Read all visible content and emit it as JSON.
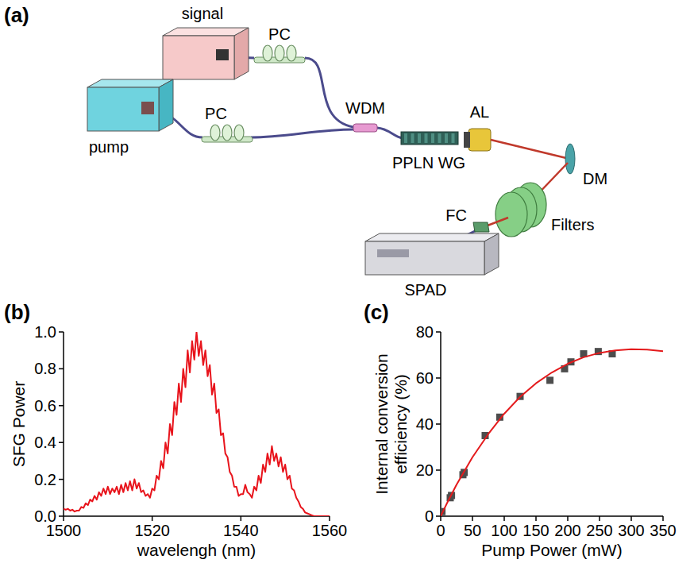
{
  "diagram": {
    "panel": "(a)",
    "components": [
      {
        "label": "signal"
      },
      {
        "label": "PC"
      },
      {
        "label": "pump"
      },
      {
        "label": "PC"
      },
      {
        "label": "WDM"
      },
      {
        "label": "PPLN WG"
      },
      {
        "label": "AL"
      },
      {
        "label": "DM"
      },
      {
        "label": "Filters"
      },
      {
        "label": "FC"
      },
      {
        "label": "SPAD"
      }
    ]
  },
  "chart_data": [
    {
      "type": "line",
      "title": "(b)",
      "x_label": "wavelengh (nm)",
      "y_label": "SFG Power",
      "color": "#e8141c",
      "xlim": [
        1500,
        1560
      ],
      "xticks": [
        1500,
        1520,
        1540,
        1560
      ],
      "ylim": [
        0,
        1
      ],
      "yticks": [
        {
          "value": 0,
          "label": "0.0"
        },
        0.2,
        0.4,
        0.6,
        0.8,
        {
          "value": 1,
          "label": "1.0"
        }
      ],
      "x": [
        1500,
        1500.5,
        1501,
        1501.5,
        1502,
        1502.5,
        1503,
        1503.5,
        1504,
        1504.5,
        1505,
        1505.5,
        1506,
        1506.5,
        1507,
        1507.5,
        1508,
        1508.5,
        1509,
        1509.5,
        1510,
        1510.5,
        1511,
        1511.5,
        1512,
        1512.5,
        1513,
        1513.5,
        1514,
        1514.5,
        1515,
        1515.5,
        1516,
        1516.5,
        1517,
        1517.5,
        1518,
        1518.5,
        1519,
        1519.5,
        1520,
        1520.5,
        1521,
        1521.5,
        1522,
        1522.5,
        1523,
        1523.5,
        1524,
        1524.5,
        1525,
        1525.5,
        1526,
        1526.5,
        1527,
        1527.5,
        1528,
        1528.5,
        1529,
        1529.5,
        1530,
        1530.5,
        1531,
        1531.5,
        1532,
        1532.5,
        1533,
        1533.5,
        1534,
        1534.5,
        1535,
        1535.5,
        1536,
        1536.5,
        1537,
        1537.5,
        1538,
        1538.5,
        1539,
        1539.5,
        1540,
        1540.5,
        1541,
        1541.5,
        1542,
        1542.5,
        1543,
        1543.5,
        1544,
        1544.5,
        1545,
        1545.5,
        1546,
        1546.5,
        1547,
        1547.5,
        1548,
        1548.5,
        1549,
        1549.5,
        1550,
        1550.5,
        1551,
        1551.5,
        1552,
        1552.5,
        1553,
        1553.5,
        1554,
        1554.5,
        1555,
        1555.5,
        1556,
        1556.5,
        1557,
        1557.5,
        1558,
        1558.5,
        1559,
        1559.5,
        1560
      ],
      "values": [
        0.04,
        0.035,
        0.04,
        0.03,
        0.035,
        0.025,
        0.03,
        0.03,
        0.05,
        0.045,
        0.07,
        0.06,
        0.09,
        0.08,
        0.11,
        0.09,
        0.13,
        0.11,
        0.15,
        0.12,
        0.16,
        0.12,
        0.15,
        0.13,
        0.16,
        0.12,
        0.17,
        0.13,
        0.18,
        0.14,
        0.19,
        0.14,
        0.2,
        0.15,
        0.18,
        0.13,
        0.14,
        0.11,
        0.12,
        0.1,
        0.15,
        0.14,
        0.22,
        0.2,
        0.3,
        0.26,
        0.4,
        0.34,
        0.5,
        0.44,
        0.62,
        0.55,
        0.72,
        0.62,
        0.8,
        0.7,
        0.9,
        0.78,
        0.95,
        0.85,
        1.0,
        0.87,
        0.95,
        0.82,
        0.9,
        0.76,
        0.82,
        0.66,
        0.72,
        0.56,
        0.58,
        0.44,
        0.45,
        0.34,
        0.32,
        0.24,
        0.22,
        0.16,
        0.16,
        0.11,
        0.12,
        0.12,
        0.17,
        0.13,
        0.12,
        0.1,
        0.16,
        0.14,
        0.22,
        0.18,
        0.28,
        0.24,
        0.34,
        0.28,
        0.38,
        0.3,
        0.34,
        0.27,
        0.32,
        0.24,
        0.28,
        0.2,
        0.22,
        0.15,
        0.14,
        0.1,
        0.08,
        0.05,
        0.04,
        0.02,
        0.015,
        0.01,
        0.005,
        0,
        0,
        0,
        0,
        0,
        0,
        0,
        0
      ]
    },
    {
      "type": "scatter",
      "title": "(c)",
      "x_label": "Pump Power (mW)",
      "y_label": "Internal conversion efficiency (%)",
      "xlim": [
        0,
        350
      ],
      "xticks": [
        0,
        50,
        100,
        150,
        200,
        250,
        300,
        350
      ],
      "ylim": [
        0,
        80
      ],
      "yticks": [
        0,
        20,
        40,
        60,
        80
      ],
      "series": [
        {
          "type": "scatter",
          "marker": "square",
          "color": "#4d4d4d",
          "x": [
            2,
            15,
            17,
            35,
            37,
            70,
            93,
            125,
            172,
            195,
            205,
            225,
            248,
            270
          ],
          "values": [
            2,
            8,
            9,
            18,
            19,
            35,
            43,
            52,
            59,
            64,
            67,
            70.5,
            71.5,
            70.5
          ]
        },
        {
          "type": "line",
          "color": "#e41a1c",
          "x": [
            0,
            10,
            25,
            50,
            75,
            100,
            125,
            150,
            175,
            200,
            225,
            250,
            275,
            300,
            325,
            350
          ],
          "values": [
            0,
            5.7,
            13.7,
            25.6,
            35.7,
            44.5,
            51.8,
            57.7,
            62.4,
            66.2,
            69,
            70.9,
            72,
            72.5,
            72.3,
            71.6
          ]
        }
      ]
    }
  ]
}
